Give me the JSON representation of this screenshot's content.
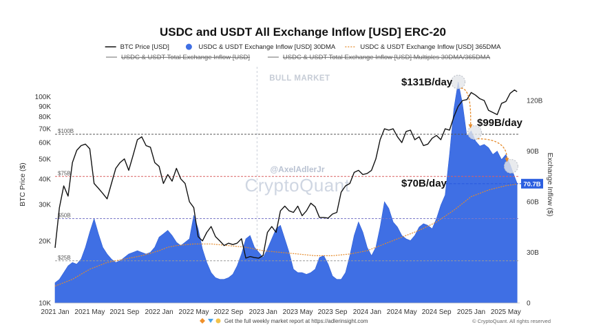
{
  "chart_data": {
    "type": "line",
    "title": "USDC and USDT All Exchange Inflow [USD] ERC-20",
    "legend": [
      {
        "label": "BTC Price [USD]",
        "style": "black-line",
        "enabled": true
      },
      {
        "label": "USDC & USDT Exchange Inflow [USD] 30DMA",
        "style": "blue-dot",
        "enabled": true
      },
      {
        "label": "USDC & USDT Exchange Inflow [USD] 365DMA",
        "style": "orange-dash",
        "enabled": true
      },
      {
        "label": "USDC & USDT Total Exchange Inflow [USD]",
        "style": "gray-line",
        "enabled": false
      },
      {
        "label": "USDC & USDT Total Exchange Inflow [USD] Multiples 30DMA/365DMA",
        "style": "gray-line",
        "enabled": false
      }
    ],
    "ylabel_left": "BTC Price ($)",
    "ylabel_right": "Exchange Inflow ($)",
    "yscale_left": "log",
    "ylim_left": [
      10000,
      140000
    ],
    "ylim_right": [
      0,
      140
    ],
    "left_ticks": [
      {
        "value": 10000,
        "label": "10K"
      },
      {
        "value": 20000,
        "label": "20K"
      },
      {
        "value": 30000,
        "label": "30K"
      },
      {
        "value": 40000,
        "label": "40K"
      },
      {
        "value": 50000,
        "label": "50K"
      },
      {
        "value": 60000,
        "label": "60K"
      },
      {
        "value": 70000,
        "label": "70K"
      },
      {
        "value": 80000,
        "label": "80K"
      },
      {
        "value": 90000,
        "label": "90K"
      },
      {
        "value": 100000,
        "label": "100K"
      }
    ],
    "right_ticks": [
      {
        "value": 0,
        "label": "0"
      },
      {
        "value": 30,
        "label": "30B"
      },
      {
        "value": 60,
        "label": "60B"
      },
      {
        "value": 90,
        "label": "90B"
      },
      {
        "value": 120,
        "label": "120B"
      }
    ],
    "x_ticks": [
      {
        "t": 0,
        "label": "2021 Jan"
      },
      {
        "t": 4,
        "label": "2021 May"
      },
      {
        "t": 8,
        "label": "2021 Sep"
      },
      {
        "t": 12,
        "label": "2022 Jan"
      },
      {
        "t": 16,
        "label": "2022 May"
      },
      {
        "t": 20,
        "label": "2022 Sep"
      },
      {
        "t": 24,
        "label": "2023 Jan"
      },
      {
        "t": 28,
        "label": "2023 May"
      },
      {
        "t": 32,
        "label": "2023 Sep"
      },
      {
        "t": 36,
        "label": "2024 Jan"
      },
      {
        "t": 40,
        "label": "2024 May"
      },
      {
        "t": 44,
        "label": "2024 Sep"
      },
      {
        "t": 48,
        "label": "2025 Jan"
      },
      {
        "t": 52,
        "label": "2025 May"
      }
    ],
    "x_unit": "months since 2021 Jan",
    "xlim": [
      0,
      53.6
    ],
    "series": [
      {
        "name": "BTC Price [USD]",
        "axis": "left",
        "color": "#111111",
        "points": [
          [
            0,
            18500
          ],
          [
            0.5,
            29000
          ],
          [
            1,
            37000
          ],
          [
            1.5,
            33000
          ],
          [
            2,
            48000
          ],
          [
            2.5,
            55000
          ],
          [
            3,
            58000
          ],
          [
            3.5,
            59000
          ],
          [
            4,
            56000
          ],
          [
            4.5,
            38000
          ],
          [
            5,
            36000
          ],
          [
            5.5,
            34000
          ],
          [
            6,
            32000
          ],
          [
            6.5,
            38000
          ],
          [
            7,
            45000
          ],
          [
            7.5,
            48000
          ],
          [
            8,
            50000
          ],
          [
            8.5,
            44000
          ],
          [
            9,
            52000
          ],
          [
            9.5,
            62000
          ],
          [
            10,
            64000
          ],
          [
            10.5,
            58000
          ],
          [
            11,
            57000
          ],
          [
            11.5,
            48000
          ],
          [
            12,
            46000
          ],
          [
            12.5,
            38000
          ],
          [
            13,
            42000
          ],
          [
            13.5,
            39000
          ],
          [
            14,
            45000
          ],
          [
            14.5,
            40000
          ],
          [
            15,
            38000
          ],
          [
            15.5,
            31000
          ],
          [
            16,
            29000
          ],
          [
            16.5,
            21000
          ],
          [
            17,
            20000
          ],
          [
            17.5,
            22000
          ],
          [
            18,
            23500
          ],
          [
            18.5,
            21000
          ],
          [
            19,
            20000
          ],
          [
            19.5,
            19000
          ],
          [
            20,
            19500
          ],
          [
            20.5,
            19200
          ],
          [
            21,
            19500
          ],
          [
            21.5,
            20500
          ],
          [
            22,
            16500
          ],
          [
            22.5,
            16800
          ],
          [
            23,
            16600
          ],
          [
            23.5,
            16500
          ],
          [
            24,
            17000
          ],
          [
            24.5,
            22000
          ],
          [
            25,
            23500
          ],
          [
            25.5,
            22000
          ],
          [
            26,
            28000
          ],
          [
            26.5,
            29500
          ],
          [
            27,
            28000
          ],
          [
            27.5,
            27500
          ],
          [
            28,
            29500
          ],
          [
            28.5,
            26500
          ],
          [
            29,
            28000
          ],
          [
            29.5,
            30500
          ],
          [
            30,
            29300
          ],
          [
            30.5,
            26000
          ],
          [
            31,
            26000
          ],
          [
            31.5,
            25800
          ],
          [
            32,
            27000
          ],
          [
            32.5,
            27500
          ],
          [
            33,
            34500
          ],
          [
            33.5,
            37000
          ],
          [
            34,
            38000
          ],
          [
            34.5,
            43000
          ],
          [
            35,
            44000
          ],
          [
            35.5,
            42000
          ],
          [
            36,
            42500
          ],
          [
            36.5,
            44000
          ],
          [
            37,
            50000
          ],
          [
            37.5,
            62000
          ],
          [
            38,
            70000
          ],
          [
            38.5,
            69000
          ],
          [
            39,
            70000
          ],
          [
            39.5,
            64000
          ],
          [
            40,
            60000
          ],
          [
            40.5,
            68000
          ],
          [
            41,
            69000
          ],
          [
            41.5,
            62000
          ],
          [
            42,
            64000
          ],
          [
            42.5,
            58000
          ],
          [
            43,
            59000
          ],
          [
            43.5,
            63000
          ],
          [
            44,
            65000
          ],
          [
            44.5,
            62000
          ],
          [
            45,
            70000
          ],
          [
            45.5,
            69000
          ],
          [
            46,
            80000
          ],
          [
            46.5,
            90000
          ],
          [
            47,
            96000
          ],
          [
            47.5,
            97000
          ],
          [
            48,
            105000
          ],
          [
            48.5,
            102000
          ],
          [
            49,
            98000
          ],
          [
            49.5,
            96000
          ],
          [
            50,
            86000
          ],
          [
            50.5,
            84000
          ],
          [
            51,
            82000
          ],
          [
            51.5,
            93000
          ],
          [
            52,
            95000
          ],
          [
            52.5,
            104000
          ],
          [
            53,
            108000
          ],
          [
            53.3,
            106000
          ]
        ]
      },
      {
        "name": "USDC & USDT Exchange Inflow [USD] 30DMA",
        "axis": "right",
        "color": "#3f6fe4",
        "points": [
          [
            0,
            12
          ],
          [
            0.5,
            14
          ],
          [
            1,
            18
          ],
          [
            1.5,
            22
          ],
          [
            2,
            24
          ],
          [
            2.5,
            23
          ],
          [
            3,
            26
          ],
          [
            3.5,
            33
          ],
          [
            4,
            42
          ],
          [
            4.5,
            50
          ],
          [
            5,
            41
          ],
          [
            5.5,
            33
          ],
          [
            6,
            29
          ],
          [
            6.5,
            26
          ],
          [
            7,
            24
          ],
          [
            7.5,
            25
          ],
          [
            8,
            27
          ],
          [
            8.5,
            29
          ],
          [
            9,
            30
          ],
          [
            9.5,
            31
          ],
          [
            10,
            30
          ],
          [
            10.5,
            29
          ],
          [
            11,
            30
          ],
          [
            11.5,
            33
          ],
          [
            12,
            39
          ],
          [
            12.5,
            41
          ],
          [
            13,
            43
          ],
          [
            13.5,
            40
          ],
          [
            14,
            36
          ],
          [
            14.5,
            34
          ],
          [
            15,
            36
          ],
          [
            15.5,
            38
          ],
          [
            16,
            52
          ],
          [
            16.5,
            44
          ],
          [
            17,
            32
          ],
          [
            17.5,
            24
          ],
          [
            18,
            18
          ],
          [
            18.5,
            15
          ],
          [
            19,
            14
          ],
          [
            19.5,
            14
          ],
          [
            20,
            15
          ],
          [
            20.5,
            17
          ],
          [
            21,
            22
          ],
          [
            21.5,
            29
          ],
          [
            22,
            38
          ],
          [
            22.5,
            40
          ],
          [
            23,
            33
          ],
          [
            23.5,
            30
          ],
          [
            24,
            27
          ],
          [
            24.5,
            32
          ],
          [
            25,
            38
          ],
          [
            25.5,
            44
          ],
          [
            26,
            46
          ],
          [
            26.5,
            38
          ],
          [
            27,
            30
          ],
          [
            27.5,
            20
          ],
          [
            28,
            18
          ],
          [
            28.5,
            18
          ],
          [
            29,
            17
          ],
          [
            29.5,
            18
          ],
          [
            30,
            20
          ],
          [
            30.5,
            27
          ],
          [
            31,
            28
          ],
          [
            31.5,
            23
          ],
          [
            32,
            16
          ],
          [
            32.5,
            14
          ],
          [
            33,
            14
          ],
          [
            33.5,
            18
          ],
          [
            34,
            28
          ],
          [
            34.5,
            40
          ],
          [
            35,
            48
          ],
          [
            35.5,
            42
          ],
          [
            36,
            33
          ],
          [
            36.5,
            28
          ],
          [
            37,
            33
          ],
          [
            37.5,
            45
          ],
          [
            38,
            60
          ],
          [
            38.5,
            56
          ],
          [
            39,
            48
          ],
          [
            39.5,
            45
          ],
          [
            40,
            40
          ],
          [
            40.5,
            38
          ],
          [
            41,
            37
          ],
          [
            41.5,
            40
          ],
          [
            42,
            45
          ],
          [
            42.5,
            47
          ],
          [
            43,
            46
          ],
          [
            43.5,
            44
          ],
          [
            44,
            50
          ],
          [
            44.5,
            58
          ],
          [
            45,
            64
          ],
          [
            45.5,
            88
          ],
          [
            46,
            115
          ],
          [
            46.5,
            131
          ],
          [
            47,
            118
          ],
          [
            47.5,
            99
          ],
          [
            48,
            102
          ],
          [
            48.5,
            96
          ],
          [
            49,
            93
          ],
          [
            49.5,
            94
          ],
          [
            50,
            92
          ],
          [
            50.5,
            88
          ],
          [
            51,
            90
          ],
          [
            51.5,
            85
          ],
          [
            52,
            88
          ],
          [
            52.5,
            82
          ],
          [
            53,
            75
          ],
          [
            53.3,
            71
          ]
        ]
      },
      {
        "name": "USDC & USDT Exchange Inflow [USD] 365DMA",
        "axis": "right",
        "color": "#e58a2a",
        "points": [
          [
            0,
            10
          ],
          [
            2,
            14
          ],
          [
            4,
            20
          ],
          [
            6,
            24
          ],
          [
            8,
            26
          ],
          [
            10,
            28
          ],
          [
            12,
            31
          ],
          [
            13,
            33
          ],
          [
            14,
            34
          ],
          [
            16,
            35
          ],
          [
            18,
            35
          ],
          [
            20,
            34
          ],
          [
            22,
            33
          ],
          [
            24,
            31
          ],
          [
            26,
            30
          ],
          [
            28,
            29
          ],
          [
            30,
            28
          ],
          [
            32,
            28
          ],
          [
            34,
            29
          ],
          [
            36,
            31
          ],
          [
            38,
            35
          ],
          [
            40,
            39
          ],
          [
            42,
            43
          ],
          [
            44,
            48
          ],
          [
            46,
            55
          ],
          [
            48,
            63
          ],
          [
            50,
            67
          ],
          [
            52,
            69.5
          ],
          [
            53.3,
            70.5
          ]
        ]
      }
    ],
    "reference_lines": [
      {
        "value": 100,
        "axis": "right",
        "label": "$100B",
        "color": "#555555"
      },
      {
        "value": 75,
        "axis": "right",
        "label": "$75B",
        "color": "#d96060"
      },
      {
        "value": 50,
        "axis": "right",
        "label": "$50B",
        "color": "#7a78c8"
      },
      {
        "value": 25,
        "axis": "right",
        "label": "$25B",
        "color": "#999999"
      }
    ],
    "current_value_line": {
      "value": 70.7,
      "label": "70.7B",
      "color": "#2c5fe0"
    },
    "vertical_marker_t": 23.3,
    "section_label": "BULL MARKET",
    "annotations": [
      {
        "text": "$131B/day",
        "marker": {
          "t": 46.5,
          "v": 131
        }
      },
      {
        "text": "$99B/day",
        "marker": {
          "t": 48.4,
          "v": 101
        }
      },
      {
        "text": "$70B/day",
        "marker": {
          "t": 52.6,
          "v": 81
        }
      }
    ],
    "watermark": {
      "handle": "@AxelAdlerJr",
      "brand": "CryptoQuant"
    },
    "footer": {
      "promo": "Get the full weekly market report at https://adlerinsight.com",
      "copyright": "© CryptoQuant. All rights reserved"
    },
    "grid": false,
    "legend_position": "top"
  }
}
